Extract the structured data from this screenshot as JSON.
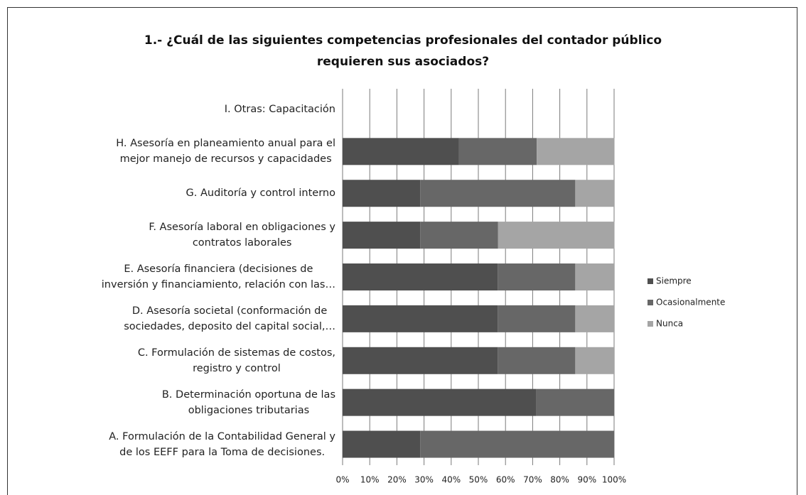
{
  "chart_data": {
    "type": "bar",
    "orientation": "horizontal",
    "stacked": true,
    "title": [
      "1.- ¿Cuál de las siguientes competencias profesionales del contador público",
      "requieren sus asociados?"
    ],
    "categories": [
      "A.  Formulación de la Contabilidad General y\nde los EEFF para la Toma de decisiones.",
      "B.  Determinación oportuna de las\nobligaciones tributarias",
      "C.  Formulación de sistemas de costos,\nregistro y control",
      "D.  Asesoría societal (conformación de\nsociedades, deposito del capital social,…",
      "E.  Asesoría financiera (decisiones de\ninversión y financiamiento, relación con las…",
      "F.  Asesoría laboral  en obligaciones y\ncontratos laborales",
      "G.  Auditoría y control interno",
      "H.  Asesoría en planeamiento anual para el\nmejor manejo de recursos y capacidades",
      "I.     Otras: Capacitación"
    ],
    "series": [
      {
        "name": "Siempre",
        "color": "#4f4f4f",
        "values": [
          28.6,
          71.4,
          57.1,
          57.1,
          57.1,
          28.6,
          28.6,
          42.9,
          0
        ]
      },
      {
        "name": "Ocasionalmente",
        "color": "#676767",
        "values": [
          71.4,
          28.6,
          28.6,
          28.6,
          28.6,
          28.6,
          57.1,
          28.6,
          0
        ]
      },
      {
        "name": "Nunca",
        "color": "#a5a5a5",
        "values": [
          0,
          0,
          14.3,
          14.3,
          14.3,
          42.9,
          14.3,
          28.6,
          0
        ]
      }
    ],
    "xlim": [
      0,
      100
    ],
    "xticks": [
      {
        "value": 0,
        "label": "0%"
      },
      {
        "value": 10,
        "label": "10%"
      },
      {
        "value": 20,
        "label": "20%"
      },
      {
        "value": 30,
        "label": "30%"
      },
      {
        "value": 40,
        "label": "40%"
      },
      {
        "value": 50,
        "label": "50%"
      },
      {
        "value": 60,
        "label": "60%"
      },
      {
        "value": 70,
        "label": "70%"
      },
      {
        "value": 80,
        "label": "80%"
      },
      {
        "value": 90,
        "label": "90%"
      },
      {
        "value": 100,
        "label": "100%"
      }
    ],
    "grid": true,
    "legend": "right"
  }
}
